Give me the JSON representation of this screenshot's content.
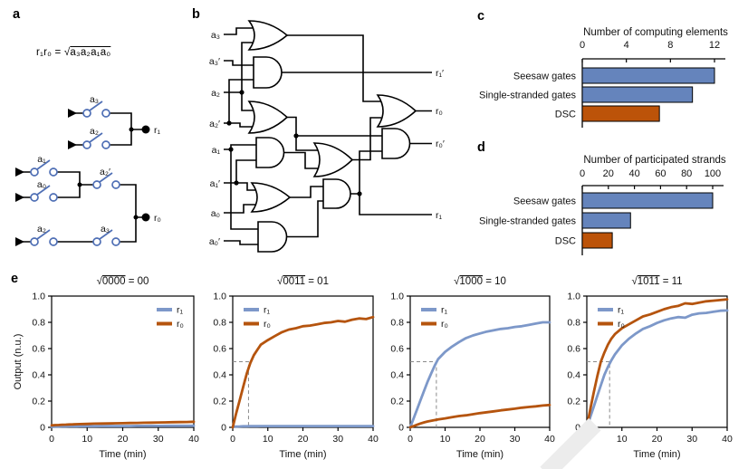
{
  "colors": {
    "bar_blue": "#6584bc",
    "bar_orange": "#bc5309",
    "line_blue": "#7d98c9",
    "line_orange": "#b5540e",
    "dash_gray": "#8a8a8a",
    "wire_black": "#000000",
    "switch_blue": "#4f6fb5"
  },
  "panels": {
    "a": {
      "label": "a",
      "formula_prefix": "r₁r₀ = ",
      "formula_radical": "√",
      "formula_radicand": "a₃a₂a₁a₀",
      "switch_labels": {
        "a3_top": "a₃",
        "a2_top": "a₂",
        "a1": "a₁",
        "a0": "a₀",
        "a2_prime": "a₂′",
        "a2_bot": "a₂",
        "a3_bot": "a₃"
      },
      "output_labels": {
        "r1": "r₁",
        "r0": "r₀"
      }
    },
    "b": {
      "label": "b",
      "inputs": [
        "a₃",
        "a₃′",
        "a₂",
        "a₂′",
        "a₁",
        "a₁′",
        "a₀",
        "a₀′"
      ],
      "outputs": [
        "r₁′",
        "r₀",
        "r₀′",
        "r₁"
      ]
    },
    "c": {
      "label": "c"
    },
    "d": {
      "label": "d"
    },
    "e": {
      "label": "e"
    }
  },
  "chart_data": [
    {
      "id": "c",
      "type": "bar",
      "orientation": "horizontal",
      "title": "Number of computing elements",
      "categories": [
        "Seesaw gates",
        "Single-stranded gates",
        "DSC"
      ],
      "values": [
        12,
        10,
        7
      ],
      "bar_colors": [
        "#6584bc",
        "#6584bc",
        "#bc5309"
      ],
      "xlim": [
        0,
        13
      ],
      "ticks": [
        0,
        4,
        8,
        12
      ],
      "tick_labels": [
        "0",
        "4",
        "8",
        "12"
      ],
      "grid": false
    },
    {
      "id": "d",
      "type": "bar",
      "orientation": "horizontal",
      "title": "Number of participated strands",
      "categories": [
        "Seesaw gates",
        "Single-stranded gates",
        "DSC"
      ],
      "values": [
        100,
        37,
        23
      ],
      "bar_colors": [
        "#6584bc",
        "#6584bc",
        "#bc5309"
      ],
      "xlim": [
        0,
        108
      ],
      "ticks": [
        0,
        20,
        40,
        60,
        80,
        100
      ],
      "tick_labels": [
        "0",
        "20",
        "40",
        "60",
        "80",
        "100"
      ],
      "grid": false
    },
    {
      "id": "e1",
      "type": "line",
      "title_text": "√0000 = 00",
      "title_radicand": "0000",
      "title_result": "00",
      "xlabel": "Time (min)",
      "ylabel": "Output (n.u.)",
      "xlim": [
        0,
        40
      ],
      "ylim": [
        0,
        1
      ],
      "xticks": [
        0,
        10,
        20,
        30,
        40
      ],
      "xtick_labels": [
        "0",
        "10",
        "20",
        "30",
        "40"
      ],
      "yticks": [
        1,
        0.8,
        0.6,
        0.4,
        0.2,
        0
      ],
      "ytick_labels": [
        "1.0",
        "0.8",
        "0.6",
        "0.4",
        "0.2",
        "0"
      ],
      "guide_x": null,
      "legend_pos": "right",
      "grid": false,
      "x": [
        0,
        1,
        2,
        3,
        4,
        5,
        6,
        7,
        8,
        10,
        12,
        14,
        16,
        18,
        20,
        22,
        24,
        26,
        28,
        30,
        32,
        34,
        36,
        38,
        40
      ],
      "series": [
        {
          "name": "r₁",
          "color": "#7d98c9",
          "values": [
            0.005,
            0.006,
            0.006,
            0.007,
            0.007,
            0.008,
            0.008,
            0.008,
            0.009,
            0.009,
            0.009,
            0.01,
            0.01,
            0.01,
            0.01,
            0.01,
            0.011,
            0.011,
            0.011,
            0.011,
            0.012,
            0.012,
            0.012,
            0.012,
            0.012
          ]
        },
        {
          "name": "r₀",
          "color": "#b5540e",
          "values": [
            0.015,
            0.017,
            0.018,
            0.02,
            0.021,
            0.022,
            0.023,
            0.024,
            0.025,
            0.026,
            0.028,
            0.029,
            0.03,
            0.031,
            0.032,
            0.033,
            0.034,
            0.035,
            0.036,
            0.037,
            0.038,
            0.039,
            0.04,
            0.041,
            0.043
          ]
        }
      ]
    },
    {
      "id": "e2",
      "type": "line",
      "title_text": "√0011 = 01",
      "title_radicand": "0011",
      "title_result": "01",
      "xlabel": "Time (min)",
      "ylabel": null,
      "xlim": [
        0,
        40
      ],
      "ylim": [
        0,
        1
      ],
      "xticks": [
        0,
        10,
        20,
        30,
        40
      ],
      "xtick_labels": [
        "0",
        "10",
        "20",
        "30",
        "40"
      ],
      "yticks": [
        1,
        0.8,
        0.6,
        0.4,
        0.2,
        0
      ],
      "ytick_labels": [
        "1.0",
        "0.8",
        "0.6",
        "0.4",
        "0.2",
        "0"
      ],
      "guide_x": 4.5,
      "legend_pos": "left",
      "grid": false,
      "x": [
        0,
        1,
        2,
        3,
        4,
        5,
        6,
        7,
        8,
        10,
        12,
        14,
        16,
        18,
        20,
        22,
        24,
        26,
        28,
        30,
        32,
        34,
        36,
        38,
        40
      ],
      "series": [
        {
          "name": "r₁",
          "color": "#7d98c9",
          "values": [
            0.005,
            0.006,
            0.007,
            0.008,
            0.008,
            0.009,
            0.009,
            0.009,
            0.01,
            0.01,
            0.01,
            0.01,
            0.01,
            0.01,
            0.01,
            0.01,
            0.01,
            0.01,
            0.01,
            0.01,
            0.01,
            0.01,
            0.01,
            0.01,
            0.01
          ]
        },
        {
          "name": "r₀",
          "color": "#b5540e",
          "values": [
            0.0,
            0.11,
            0.21,
            0.31,
            0.41,
            0.49,
            0.55,
            0.59,
            0.63,
            0.665,
            0.695,
            0.725,
            0.745,
            0.755,
            0.77,
            0.775,
            0.785,
            0.795,
            0.8,
            0.81,
            0.805,
            0.82,
            0.83,
            0.825,
            0.84
          ]
        }
      ]
    },
    {
      "id": "e3",
      "type": "line",
      "title_text": "√1000 = 10",
      "title_radicand": "1000",
      "title_result": "10",
      "xlabel": "Time (min)",
      "ylabel": null,
      "xlim": [
        0,
        40
      ],
      "ylim": [
        0,
        1
      ],
      "xticks": [
        0,
        10,
        20,
        30,
        40
      ],
      "xtick_labels": [
        "0",
        "10",
        "20",
        "30",
        "40"
      ],
      "yticks": [
        1,
        0.8,
        0.6,
        0.4,
        0.2,
        0
      ],
      "ytick_labels": [
        "1.0",
        "0.8",
        "0.6",
        "0.4",
        "0.2",
        "0"
      ],
      "guide_x": 7.5,
      "legend_pos": "left",
      "grid": false,
      "x": [
        0,
        1,
        2,
        3,
        4,
        5,
        6,
        7,
        8,
        10,
        12,
        14,
        16,
        18,
        20,
        22,
        24,
        26,
        28,
        30,
        32,
        34,
        36,
        38,
        40
      ],
      "series": [
        {
          "name": "r₁",
          "color": "#7d98c9",
          "values": [
            0.0,
            0.07,
            0.14,
            0.21,
            0.28,
            0.35,
            0.41,
            0.47,
            0.52,
            0.575,
            0.615,
            0.65,
            0.68,
            0.7,
            0.715,
            0.73,
            0.74,
            0.75,
            0.755,
            0.765,
            0.77,
            0.78,
            0.79,
            0.8,
            0.8
          ]
        },
        {
          "name": "r₀",
          "color": "#b5540e",
          "values": [
            0.0,
            0.01,
            0.02,
            0.03,
            0.038,
            0.045,
            0.05,
            0.055,
            0.06,
            0.068,
            0.078,
            0.086,
            0.092,
            0.1,
            0.108,
            0.115,
            0.122,
            0.13,
            0.136,
            0.142,
            0.15,
            0.155,
            0.16,
            0.166,
            0.17
          ]
        }
      ]
    },
    {
      "id": "e4",
      "type": "line",
      "title_text": "√1011 = 11",
      "title_radicand": "1011",
      "title_result": "11",
      "xlabel": "Time (min)",
      "ylabel": null,
      "xlim": [
        0,
        40
      ],
      "ylim": [
        0,
        1
      ],
      "xticks": [
        0,
        10,
        20,
        30,
        40
      ],
      "xtick_labels": [
        "0",
        "10",
        "20",
        "30",
        "40"
      ],
      "yticks": [
        1,
        0.8,
        0.6,
        0.4,
        0.2,
        0
      ],
      "ytick_labels": [
        "1.0",
        "0.8",
        "0.6",
        "0.4",
        "0.2",
        "0"
      ],
      "guide_x": 6.5,
      "legend_pos": "left",
      "grid": false,
      "x": [
        0,
        1,
        2,
        3,
        4,
        5,
        6,
        7,
        8,
        10,
        12,
        14,
        16,
        18,
        20,
        22,
        24,
        26,
        28,
        30,
        32,
        34,
        36,
        38,
        40
      ],
      "series": [
        {
          "name": "r₁",
          "color": "#7d98c9",
          "values": [
            0.0,
            0.08,
            0.16,
            0.24,
            0.32,
            0.4,
            0.46,
            0.51,
            0.555,
            0.625,
            0.675,
            0.715,
            0.75,
            0.77,
            0.795,
            0.815,
            0.83,
            0.84,
            0.835,
            0.858,
            0.868,
            0.872,
            0.88,
            0.888,
            0.89
          ]
        },
        {
          "name": "r₀",
          "color": "#b5540e",
          "values": [
            0.0,
            0.14,
            0.27,
            0.39,
            0.5,
            0.57,
            0.63,
            0.675,
            0.71,
            0.755,
            0.785,
            0.815,
            0.845,
            0.86,
            0.88,
            0.9,
            0.915,
            0.925,
            0.945,
            0.94,
            0.95,
            0.96,
            0.965,
            0.97,
            0.975
          ]
        }
      ]
    }
  ]
}
